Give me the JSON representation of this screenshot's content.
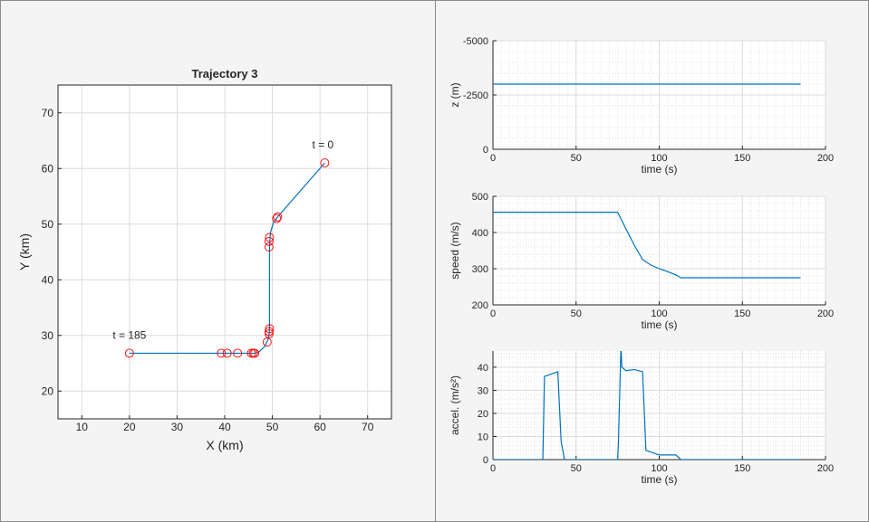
{
  "chart_data": [
    {
      "type": "line",
      "title": "Trajectory 3",
      "xlabel": "X (km)",
      "ylabel": "Y (km)",
      "xlim": [
        5,
        75
      ],
      "ylim": [
        15,
        75
      ],
      "xticks": [
        10,
        20,
        30,
        40,
        50,
        60,
        70
      ],
      "yticks": [
        20,
        30,
        40,
        50,
        60,
        70
      ],
      "grid": true,
      "annotations": [
        {
          "text": "t = 0",
          "x": 61,
          "y": 61
        },
        {
          "text": "t = 185",
          "x": 20,
          "y": 26.8
        }
      ],
      "path": [
        [
          61,
          61
        ],
        [
          51.1,
          51.3
        ],
        [
          50.2,
          50.2
        ],
        [
          49.6,
          48.5
        ],
        [
          49.4,
          46
        ],
        [
          49.4,
          31
        ],
        [
          49.2,
          29.5
        ],
        [
          48.4,
          28
        ],
        [
          47,
          26.9
        ],
        [
          46,
          26.8
        ],
        [
          20,
          26.8
        ]
      ],
      "markers": [
        [
          61,
          61
        ],
        [
          51.1,
          51.3
        ],
        [
          50.9,
          51.0
        ],
        [
          49.4,
          47.6
        ],
        [
          49.3,
          46.9
        ],
        [
          49.3,
          45.9
        ],
        [
          49.4,
          31.2
        ],
        [
          49.3,
          30.7
        ],
        [
          49.3,
          30.3
        ],
        [
          48.9,
          28.8
        ],
        [
          46.3,
          26.8
        ],
        [
          46.0,
          26.8
        ],
        [
          45.6,
          26.8
        ],
        [
          42.7,
          26.8
        ],
        [
          40.5,
          26.8
        ],
        [
          39.3,
          26.8
        ],
        [
          20,
          26.8
        ]
      ],
      "line_color": "#0072bd",
      "marker_color": "#ff0000"
    },
    {
      "type": "line",
      "xlabel": "time (s)",
      "ylabel": "z (m)",
      "xlim": [
        0,
        200
      ],
      "ylim": [
        -5000,
        0
      ],
      "y_reversed": true,
      "xticks": [
        0,
        50,
        100,
        150,
        200
      ],
      "yticks": [
        0,
        -2500,
        -5000
      ],
      "grid": true,
      "x": [
        0,
        185
      ],
      "y": [
        -3000,
        -3000
      ]
    },
    {
      "type": "line",
      "xlabel": "time (s)",
      "ylabel": "speed (m/s)",
      "xlim": [
        0,
        200
      ],
      "ylim": [
        200,
        500
      ],
      "xticks": [
        0,
        50,
        100,
        150,
        200
      ],
      "yticks": [
        200,
        300,
        400,
        500
      ],
      "grid": true,
      "x": [
        0,
        75,
        80,
        85,
        90,
        95,
        100,
        105,
        110,
        113,
        185
      ],
      "y": [
        456,
        456,
        410,
        365,
        325,
        310,
        300,
        292,
        283,
        275,
        275
      ]
    },
    {
      "type": "line",
      "xlabel": "time (s)",
      "ylabel": "accel. (m/s²)",
      "xlim": [
        0,
        200
      ],
      "ylim": [
        0,
        47
      ],
      "xticks": [
        0,
        50,
        100,
        150,
        200
      ],
      "yticks": [
        0,
        10,
        20,
        30,
        40
      ],
      "grid": true,
      "x": [
        0,
        30,
        31,
        39,
        41,
        43,
        75,
        75.5,
        77,
        77.5,
        80,
        85,
        90,
        92,
        100,
        110,
        113,
        185
      ],
      "y": [
        0,
        0,
        36,
        38,
        8,
        0,
        0,
        8,
        50,
        40,
        38.5,
        39,
        38,
        4,
        2,
        2,
        0,
        0
      ]
    }
  ]
}
